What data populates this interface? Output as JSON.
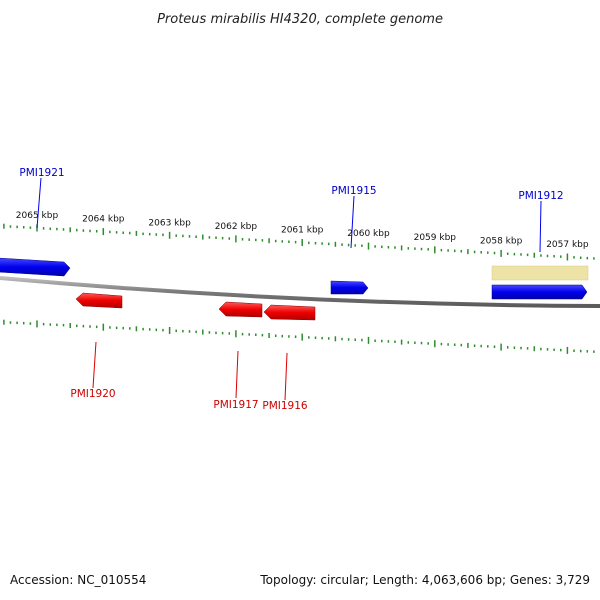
{
  "title": "Proteus mirabilis HI4320, complete genome",
  "footer": {
    "accession": "Accession: NC_010554",
    "summary": "Topology: circular; Length: 4,063,606 bp; Genes: 3,729"
  },
  "colors": {
    "forward_gene": "#0000ee",
    "reverse_gene": "#ee0000",
    "ticks": "#2e8b2e",
    "backbone": "#888888",
    "highlight": "#ede3a6"
  },
  "scale": {
    "unit": "kbp",
    "labels": [
      "2065 kbp",
      "2064 kbp",
      "2063 kbp",
      "2062 kbp",
      "2061 kbp",
      "2060 kbp",
      "2059 kbp",
      "2058 kbp",
      "2057 kbp"
    ]
  },
  "genes": {
    "forward": [
      {
        "id": "fwd-left",
        "label": ""
      },
      {
        "id": "PMI1915",
        "label": "PMI1915"
      },
      {
        "id": "PMI1912",
        "label": "PMI1912"
      }
    ],
    "reverse": [
      {
        "id": "PMI1920",
        "label": "PMI1920"
      },
      {
        "id": "PMI1917",
        "label": "PMI1917"
      },
      {
        "id": "PMI1916",
        "label": "PMI1916"
      }
    ],
    "callouts": [
      {
        "id": "PMI1921",
        "label": "PMI1921"
      }
    ]
  }
}
